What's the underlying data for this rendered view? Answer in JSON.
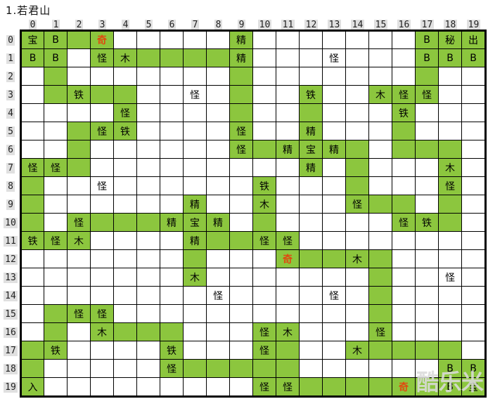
{
  "title": "1.若君山",
  "watermark": "酷乐米",
  "colors": {
    "cell_green": "#8CC63E",
    "special_red": "#E04A10",
    "grid_line": "#000000",
    "header_patch_bg": "#E0E0E0",
    "watermark_color": "rgba(219,219,219,0.88)",
    "background": "#FFFFFF"
  },
  "col_headers": [
    "0",
    "1",
    "2",
    "3",
    "4",
    "5",
    "6",
    "7",
    "8",
    "9",
    "10",
    "11",
    "12",
    "13",
    "14",
    "15",
    "16",
    "17",
    "18",
    "19"
  ],
  "row_headers": [
    "0",
    "1",
    "2",
    "3",
    "4",
    "5",
    "6",
    "7",
    "8",
    "9",
    "10",
    "11",
    "12",
    "13",
    "14",
    "15",
    "16",
    "17",
    "18",
    "19"
  ],
  "grid": {
    "cell_encoding": {
      "": "white empty cell",
      "#": "green empty path cell",
      "X": "green cell with black text X",
      "w:X": "white cell with black text X",
      "r:X": "green cell with red text X"
    },
    "rows": [
      [
        "宝",
        "B",
        "#",
        "r:奇",
        "",
        "",
        "",
        "",
        "",
        "精",
        "",
        "",
        "",
        "",
        "",
        "",
        "",
        "B",
        "秘",
        "出"
      ],
      [
        "B",
        "B",
        "",
        "怪",
        "木",
        "#",
        "#",
        "#",
        "#",
        "精",
        "",
        "",
        "",
        "w:怪",
        "",
        "",
        "",
        "B",
        "B",
        "B"
      ],
      [
        "",
        "#",
        "",
        "",
        "",
        "",
        "",
        "",
        "",
        "#",
        "",
        "",
        "",
        "",
        "",
        "",
        "",
        "#",
        "",
        ""
      ],
      [
        "",
        "#",
        "铁",
        "#",
        "#",
        "",
        "",
        "w:怪",
        "",
        "#",
        "",
        "",
        "铁",
        "",
        "",
        "木",
        "怪",
        "怪",
        "",
        ""
      ],
      [
        "",
        "",
        "",
        "",
        "怪",
        "",
        "",
        "",
        "",
        "#",
        "",
        "",
        "#",
        "",
        "",
        "",
        "铁",
        "",
        "",
        ""
      ],
      [
        "",
        "",
        "#",
        "怪",
        "铁",
        "",
        "",
        "",
        "",
        "怪",
        "",
        "",
        "精",
        "",
        "",
        "",
        "#",
        "",
        "",
        ""
      ],
      [
        "",
        "",
        "#",
        "",
        "",
        "",
        "",
        "",
        "",
        "怪",
        "#",
        "精",
        "宝",
        "精",
        "#",
        "",
        "#",
        "#",
        "#",
        ""
      ],
      [
        "怪",
        "怪",
        "#",
        "",
        "",
        "",
        "",
        "",
        "",
        "",
        "",
        "",
        "精",
        "",
        "#",
        "",
        "",
        "",
        "木",
        ""
      ],
      [
        "#",
        "",
        "",
        "w:怪",
        "",
        "",
        "",
        "",
        "",
        "",
        "铁",
        "",
        "",
        "",
        "#",
        "",
        "",
        "",
        "怪",
        ""
      ],
      [
        "#",
        "",
        "",
        "",
        "",
        "",
        "",
        "精",
        "",
        "",
        "木",
        "",
        "",
        "",
        "怪",
        "#",
        "#",
        "",
        "#",
        ""
      ],
      [
        "#",
        "",
        "怪",
        "#",
        "#",
        "#",
        "精",
        "宝",
        "精",
        "",
        "#",
        "",
        "",
        "",
        "",
        "",
        "怪",
        "铁",
        "#",
        ""
      ],
      [
        "铁",
        "怪",
        "木",
        "",
        "",
        "",
        "",
        "精",
        "#",
        "#",
        "怪",
        "怪",
        "",
        "",
        "",
        "",
        "",
        "",
        "",
        ""
      ],
      [
        "",
        "",
        "",
        "",
        "",
        "",
        "",
        "#",
        "",
        "",
        "",
        "r:奇",
        "#",
        "#",
        "木",
        "#",
        "",
        "",
        "",
        ""
      ],
      [
        "",
        "",
        "",
        "",
        "",
        "",
        "",
        "木",
        "",
        "",
        "",
        "",
        "",
        "",
        "",
        "#",
        "",
        "",
        "w:怪",
        ""
      ],
      [
        "",
        "",
        "",
        "",
        "",
        "",
        "",
        "",
        "w:怪",
        "",
        "",
        "",
        "",
        "w:怪",
        "",
        "#",
        "",
        "",
        "",
        ""
      ],
      [
        "",
        "#",
        "怪",
        "怪",
        "",
        "",
        "",
        "",
        "",
        "",
        "",
        "",
        "",
        "",
        "",
        "#",
        "",
        "",
        "",
        ""
      ],
      [
        "",
        "#",
        "",
        "木",
        "#",
        "#",
        "#",
        "",
        "",
        "",
        "怪",
        "木",
        "",
        "",
        "",
        "怪",
        "",
        "",
        "",
        ""
      ],
      [
        "#",
        "铁",
        "",
        "",
        "",
        "",
        "铁",
        "",
        "",
        "",
        "怪",
        "#",
        "",
        "",
        "木",
        "#",
        "#",
        "#",
        "#",
        ""
      ],
      [
        "#",
        "",
        "",
        "",
        "",
        "",
        "怪",
        "#",
        "#",
        "#",
        "#",
        "#",
        "",
        "",
        "",
        "",
        "",
        "",
        "B",
        "B"
      ],
      [
        "入",
        "",
        "",
        "",
        "",
        "",
        "",
        "",
        "",
        "",
        "怪",
        "怪",
        "#",
        "#",
        "#",
        "#",
        "r:奇",
        "#",
        "B",
        "宝"
      ]
    ]
  }
}
